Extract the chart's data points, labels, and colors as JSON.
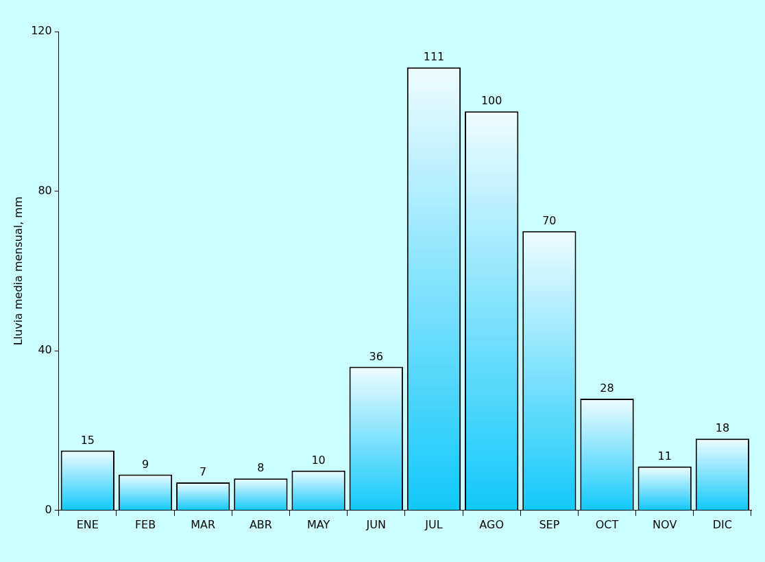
{
  "chart_data": {
    "type": "bar",
    "ylabel": "Lluvia media mensual, mm",
    "categories": [
      "ENE",
      "FEB",
      "MAR",
      "ABR",
      "MAY",
      "JUN",
      "JUL",
      "AGO",
      "SEP",
      "OCT",
      "NOV",
      "DIC"
    ],
    "values": [
      15,
      9,
      7,
      8,
      10,
      36,
      111,
      100,
      70,
      28,
      11,
      18
    ],
    "color": "#11c8fa",
    "ylim": [
      0,
      120
    ],
    "yticks": [
      0,
      40,
      80,
      120
    ],
    "data_labels": true
  }
}
